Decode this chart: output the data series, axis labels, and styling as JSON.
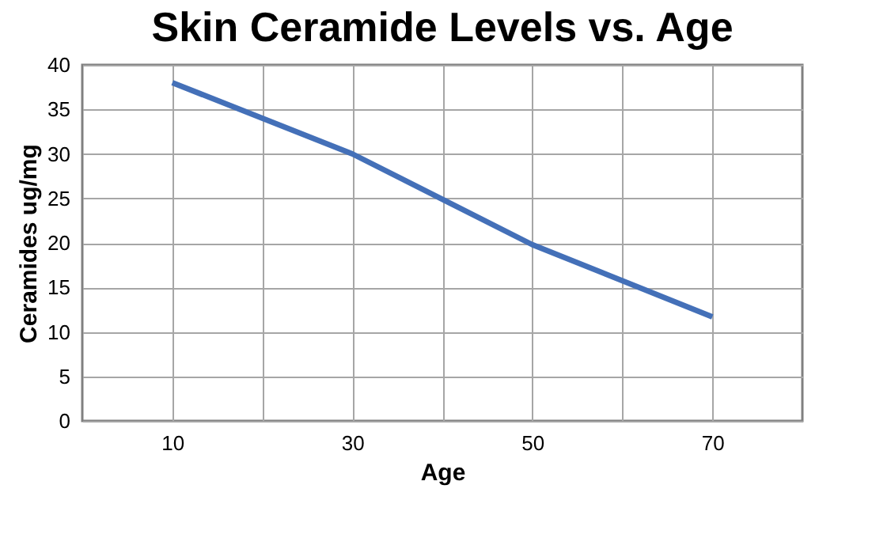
{
  "chart_data": {
    "type": "line",
    "title": "Skin Ceramide Levels vs. Age",
    "xlabel": "Age",
    "ylabel": "Ceramides ug/mg",
    "x": [
      10,
      30,
      50,
      70
    ],
    "series": [
      {
        "color": "#4470b8",
        "values": [
          38,
          30,
          19.8,
          11.7
        ]
      }
    ],
    "xlim": [
      0,
      80
    ],
    "xticks": [
      10,
      {
        "value": 20,
        "label": null
      },
      30,
      {
        "value": 40,
        "label": null
      },
      50,
      {
        "value": 60,
        "label": null
      },
      70
    ],
    "ylim": [
      0,
      40
    ],
    "yticks": [
      0,
      5,
      10,
      15,
      20,
      25,
      30,
      35,
      40
    ],
    "grid": true,
    "marker": "none",
    "line_style": "solid"
  }
}
